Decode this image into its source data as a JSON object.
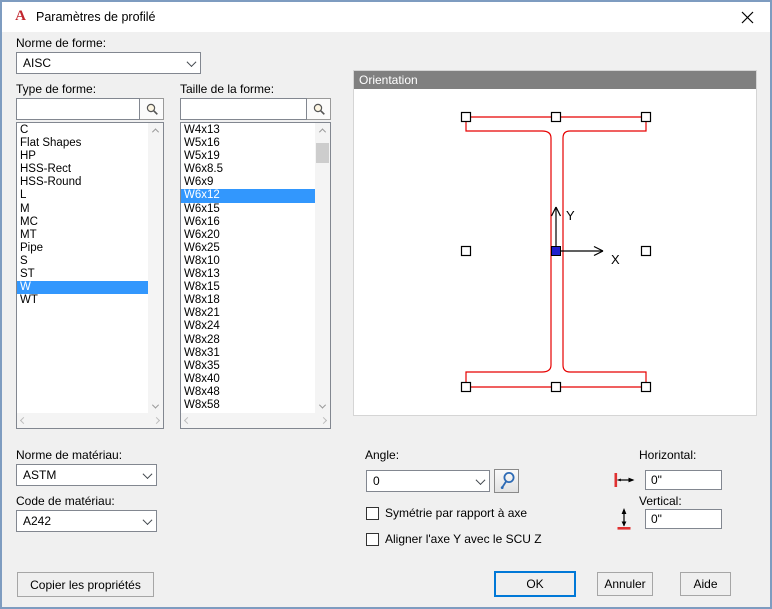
{
  "window": {
    "title": "Paramètres de profilé",
    "logo_letter": "A"
  },
  "shape_standard": {
    "label": "Norme de forme:",
    "value": "AISC"
  },
  "shape_type": {
    "label": "Type de forme:",
    "filter_value": "",
    "selected": "W",
    "items": [
      "C",
      "Flat Shapes",
      "HP",
      "HSS-Rect",
      "HSS-Round",
      "L",
      "M",
      "MC",
      "MT",
      "Pipe",
      "S",
      "ST",
      "W",
      "WT"
    ]
  },
  "shape_size": {
    "label": "Taille de la forme:",
    "filter_value": "",
    "selected": "W6x12",
    "items": [
      "W4x13",
      "W5x16",
      "W5x19",
      "W6x8.5",
      "W6x9",
      "W6x12",
      "W6x15",
      "W6x16",
      "W6x20",
      "W6x25",
      "W8x10",
      "W8x13",
      "W8x15",
      "W8x18",
      "W8x21",
      "W8x24",
      "W8x28",
      "W8x31",
      "W8x35",
      "W8x40",
      "W8x48",
      "W8x58"
    ]
  },
  "orientation": {
    "title": "Orientation",
    "axis_x_label": "X",
    "axis_y_label": "Y"
  },
  "material_standard": {
    "label": "Norme de matériau:",
    "value": "ASTM"
  },
  "material_code": {
    "label": "Code de matériau:",
    "value": "A242"
  },
  "angle": {
    "label": "Angle:",
    "value": "0"
  },
  "checkboxes": {
    "symmetry_label": "Symétrie par rapport à axe",
    "align_label": "Aligner l'axe Y avec le SCU Z"
  },
  "offsets": {
    "horizontal_label": "Horizontal:",
    "horizontal_value": "0\"",
    "vertical_label": "Vertical:",
    "vertical_value": "0\""
  },
  "buttons": {
    "copy": "Copier les propriétés",
    "ok": "OK",
    "cancel": "Annuler",
    "help": "Aide"
  },
  "colors": {
    "selection_blue": "#3297fd",
    "beam_red": "#e60000",
    "grip_blue": "#2020cc",
    "header_gray": "#808080",
    "window_border": "#7e9cc0",
    "ok_focus_border": "#0078d7"
  }
}
